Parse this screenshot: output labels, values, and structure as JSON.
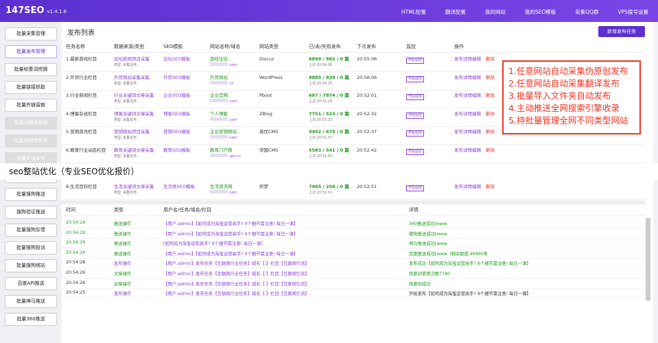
{
  "header": {
    "logo": "147SEO",
    "version": "v1.4.1.6",
    "nav": [
      "HTML配置",
      "翻译配置",
      "我的网站",
      "我的SEO模板",
      "采集QQ群",
      "VPS拨号设置"
    ]
  },
  "sidebar": [
    {
      "label": "批量采集管理",
      "state": "normal"
    },
    {
      "label": "批量发布管理",
      "state": "active"
    },
    {
      "label": "批量权重词挖掘",
      "state": "normal"
    },
    {
      "label": "批量链接抓取",
      "state": "normal"
    },
    {
      "label": "批量外链留痕",
      "state": "normal"
    },
    {
      "label": "批量自媒体管理",
      "state": "disabled"
    },
    {
      "label": "批量短视频管理",
      "state": "disabled"
    },
    {
      "label": "批量外链发布",
      "state": "disabled"
    },
    {
      "label": "收录数据查询",
      "state": "normal"
    },
    {
      "label": "批量搜狗推送",
      "state": "normal"
    },
    {
      "label": "搜狗验证推送",
      "state": "normal"
    },
    {
      "label": "批量搜狗反馈",
      "state": "normal"
    },
    {
      "label": "批量搜狗投诉",
      "state": "normal"
    },
    {
      "label": "批量搜狗绑站",
      "state": "normal"
    },
    {
      "label": "百度API推送",
      "state": "normal"
    },
    {
      "label": "批量神马推送",
      "state": "normal"
    },
    {
      "label": "批量360推送",
      "state": "normal"
    }
  ],
  "publish": {
    "title": "发布列表",
    "add_button": "新增发布任务",
    "columns": [
      "任务名称",
      "数据来源/类型",
      "SEO模板",
      "网站名称/域名",
      "网站类型",
      "已/未/失败发布",
      "下次发布",
      "监控",
      "操作"
    ],
    "monitor": "开始监控",
    "actions": [
      "发布详情",
      "编辑",
      "删除"
    ],
    "rows": [
      {
        "name": "1.最新游戏栏目",
        "source": "论坛新闻项目采集",
        "type": "类型: 采集任务",
        "template": "论坛SEO模板",
        "site": "游戏论坛",
        "domain": ".com",
        "site_type": "Discuz",
        "counts": "6899 / 982 / 0 篇",
        "last": "上次:20:54:06",
        "next": "20:55:06"
      },
      {
        "name": "2.外贸行业栏目",
        "source": "外贸网站采集采集",
        "type": "类型: 采集任务",
        "template": "外贸SEO模板",
        "site": "外贸网站",
        "domain": ".cn",
        "site_type": "WordPress",
        "counts": "9885 / 839 / 0 篇",
        "last": "上次:20:54:29",
        "next": "20:56:06"
      },
      {
        "name": "3.行业新闻栏目",
        "source": "行业关键词文章采集",
        "type": "类型: 采集任务",
        "template": "企业SEO模板",
        "site": "企业官网",
        "domain": ".com",
        "site_type": "Pboot",
        "counts": "687 / 7874 / 0 篇",
        "last": "上次:20:51:28",
        "next": "20:52:01"
      },
      {
        "name": "4.博客杂说栏目",
        "source": "博客关键词文章采集",
        "type": "类型: 采集任务",
        "template": "博客SEO模板",
        "site": "个人博客",
        "domain": ".com",
        "site_type": "ZBlog",
        "counts": "7751 / 523 / 0 篇",
        "last": "上次:20:51:32",
        "next": "20:52:32"
      },
      {
        "name": "5.营销资讯栏目",
        "source": "营销网站项目采集",
        "type": "类型: 采集任务",
        "template": "营销SEO模板",
        "site": "企业营销网站",
        "domain": ".com",
        "site_type": "易优CMS",
        "counts": "9452 / 679 / 0 篇",
        "last": "上次:20:51:37",
        "next": "20:52:37"
      },
      {
        "name": "6.教育行业动态栏目",
        "source": "教育关键词文章采集",
        "type": "类型: 采集任务",
        "template": "教育SEO模板",
        "site": "教育门户网",
        "domain": ".gov.cn",
        "site_type": "帝国CMS",
        "counts": "5583 / 541 / 0 篇",
        "last": "上次:20:51:42",
        "next": "20:52:42"
      },
      {
        "name": "8.生活百科栏目",
        "source": "生活关键词文章采集",
        "type": "类型: 采集任务",
        "template": "生活类SEO模板",
        "site": "生活资讯网",
        "domain": ".com",
        "site_type": "织梦",
        "counts": "7985 / 256 / 0 篇",
        "last": "上次:20:51:51",
        "next": "20:52:51"
      }
    ]
  },
  "banner": "seo整站优化（专业SEO优化报价）",
  "annotation": [
    "1.任意网站自动采集伪原创发布",
    "2.任意网站自动采集翻译发布",
    "3.批量导入文件夹自动发布",
    "4.主动推送全网搜索引擎收录",
    "5.持批量管理全网不同类型网站"
  ],
  "log": {
    "columns": [
      "时间",
      "类型",
      "用户名/任务/域名/栏目",
      "详情"
    ],
    "rows": [
      {
        "time": "20:54:29",
        "type": "推送操作",
        "info": "【用户:admin】【如何成为淘宝运营高手? 9个细节需注意! 每日一课】",
        "detail": "360推送成功[www."
      },
      {
        "time": "20:54:29",
        "type": "推送操作",
        "info": "【用户:admin】【如何成为淘宝运营高手? 9个细节需注意! 每日一课】",
        "detail": "搜狗推送成功[www."
      },
      {
        "time": "20:54:29",
        "type": "推送操作",
        "info": "[如何成为淘宝运营高手? 9个细节需注意! 每日一课]",
        "detail": "神马推送成功[www."
      },
      {
        "time": "20:54:29",
        "type": "推送操作",
        "info": "【用户:admin】【如何成为淘宝运营高手? 9个细节需注意! 每日一课】",
        "detail": "百度推送成功[www.      ]剩余额度 99960条"
      },
      {
        "time": "20:54:28",
        "type": "发布操作",
        "info": "【用户:admin】发布任务【互联网行业任务】域名【        】栏目【互联网引流】",
        "detail": "发布成功【如何成为淘宝运营高手? 9个细节需注意! 每日一课】"
      },
      {
        "time": "20:54:26",
        "type": "文章操作",
        "info": "【用户:admin】发布任务【互联网行业任务】域名【        】栏目【互联网引流】",
        "detail": "伪原创使用次数7780"
      },
      {
        "time": "20:54:26",
        "type": "文章操作",
        "info": "【用户:admin】发布任务【互联网行业任务】域名【        】栏目【互联网引流】",
        "detail": "伪原创成功"
      },
      {
        "time": "20:54:25",
        "type": "发布操作",
        "info": "【用户:admin】发布任务【互联网行业任务】域名【        】栏目【互联网引流】",
        "detail": "开始发布【如何成为淘宝运营高手? 9个细节需注意! 每日一课】"
      }
    ]
  }
}
